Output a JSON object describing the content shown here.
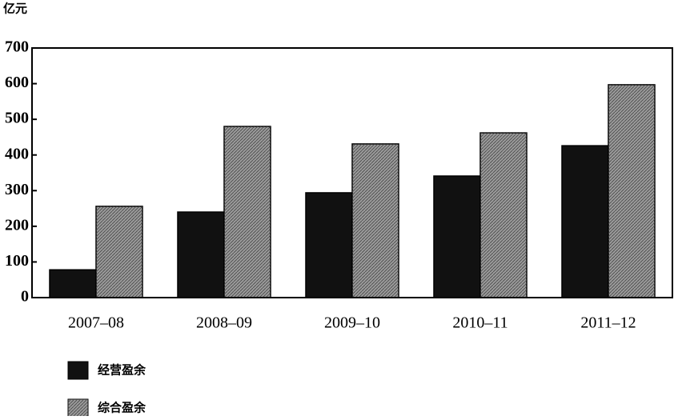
{
  "chart_data": {
    "type": "bar",
    "y_label": "亿元",
    "categories": [
      "2007–08",
      "2008–09",
      "2009–10",
      "2010–11",
      "2011–12"
    ],
    "series": [
      {
        "name": "经营盈余",
        "color": "#111111",
        "values": [
          78,
          240,
          294,
          341,
          426
        ]
      },
      {
        "name": "综合盈余",
        "color": "#9a9a9a",
        "values": [
          256,
          480,
          431,
          462,
          597
        ]
      }
    ],
    "ylim": [
      0,
      700
    ],
    "yticks": [
      0,
      100,
      200,
      300,
      400,
      500,
      600,
      700
    ]
  }
}
